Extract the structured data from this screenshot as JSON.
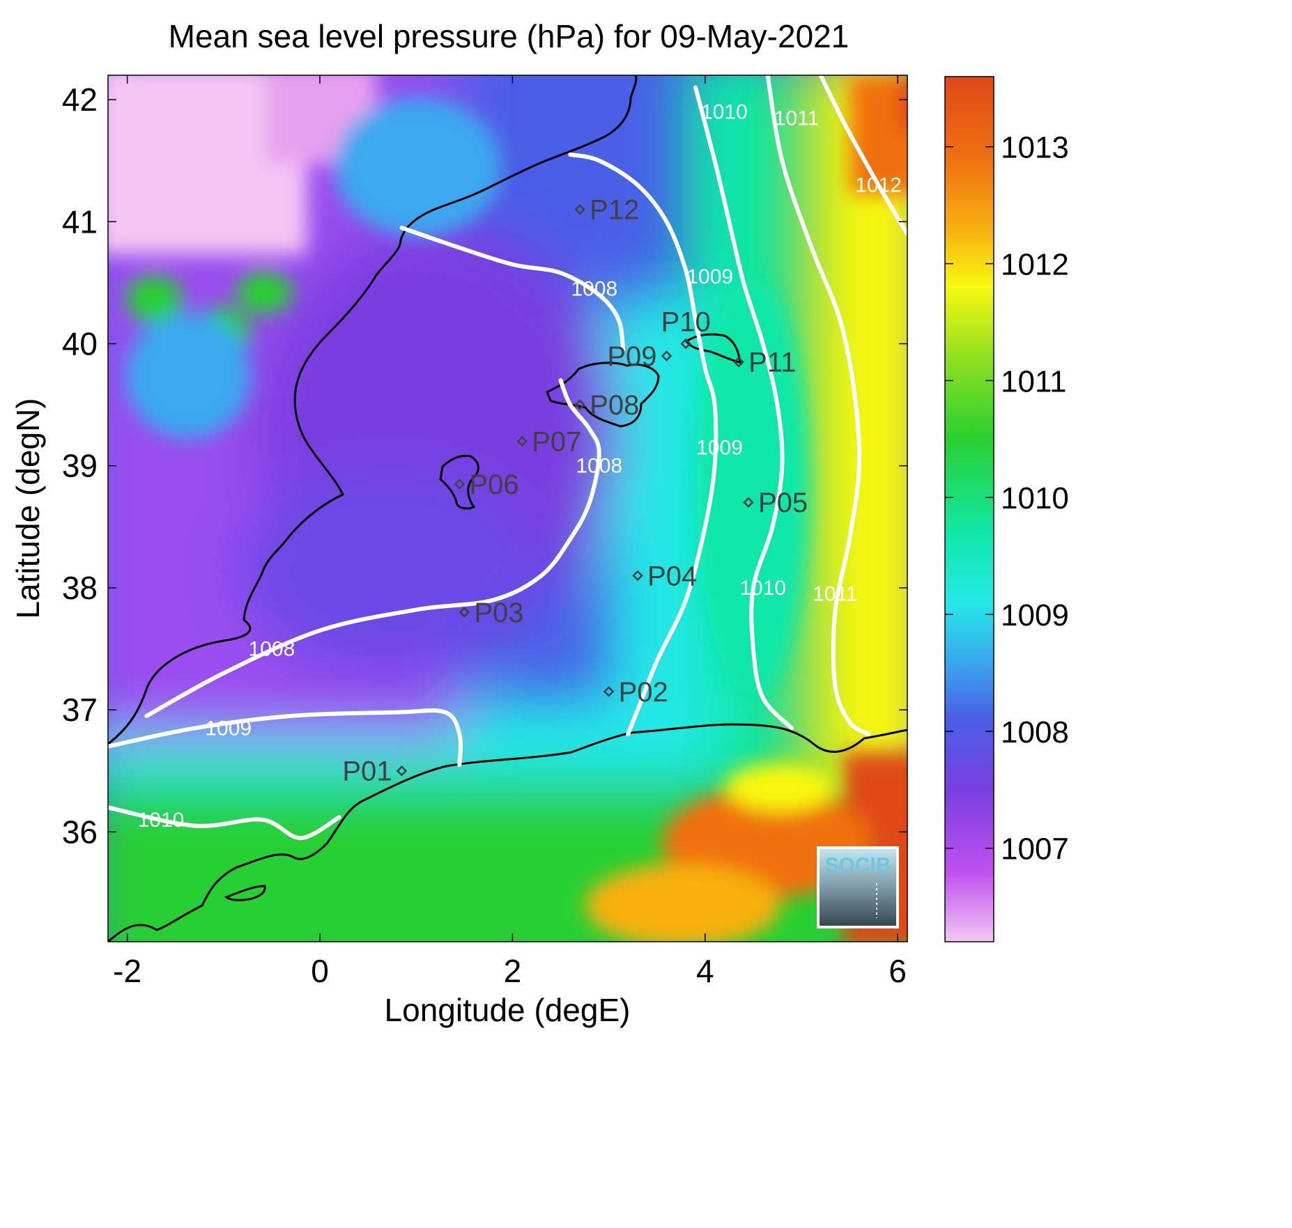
{
  "title": "Mean sea level pressure (hPa) for 09-May-2021",
  "xlabel": "Longitude (degE)",
  "ylabel": "Latitude (degN)",
  "logo_text": "SOCIB",
  "x_ticks": [
    {
      "value": -2,
      "label": "-2"
    },
    {
      "value": 0,
      "label": "0"
    },
    {
      "value": 2,
      "label": "2"
    },
    {
      "value": 4,
      "label": "4"
    },
    {
      "value": 6,
      "label": "6"
    }
  ],
  "y_ticks": [
    {
      "value": 36,
      "label": "36"
    },
    {
      "value": 37,
      "label": "37"
    },
    {
      "value": 38,
      "label": "38"
    },
    {
      "value": 39,
      "label": "39"
    },
    {
      "value": 40,
      "label": "40"
    },
    {
      "value": 41,
      "label": "41"
    },
    {
      "value": 42,
      "label": "42"
    }
  ],
  "colorbar": {
    "min": 1006.2,
    "max": 1013.6,
    "ticks": [
      {
        "value": 1007,
        "label": "1007"
      },
      {
        "value": 1008,
        "label": "1008"
      },
      {
        "value": 1009,
        "label": "1009"
      },
      {
        "value": 1010,
        "label": "1010"
      },
      {
        "value": 1011,
        "label": "1011"
      },
      {
        "value": 1012,
        "label": "1012"
      },
      {
        "value": 1013,
        "label": "1013"
      }
    ],
    "stops": [
      {
        "value": 1006.2,
        "color": "#f4c6f4"
      },
      {
        "value": 1006.8,
        "color": "#c050f0"
      },
      {
        "value": 1007.5,
        "color": "#7a3ee0"
      },
      {
        "value": 1008.1,
        "color": "#4a5ee8"
      },
      {
        "value": 1008.6,
        "color": "#3aa8f0"
      },
      {
        "value": 1009.1,
        "color": "#24e8e8"
      },
      {
        "value": 1009.7,
        "color": "#10e8a8"
      },
      {
        "value": 1010.5,
        "color": "#28d030"
      },
      {
        "value": 1011.2,
        "color": "#90e020"
      },
      {
        "value": 1011.8,
        "color": "#f8f810"
      },
      {
        "value": 1012.3,
        "color": "#f8b010"
      },
      {
        "value": 1012.9,
        "color": "#f07010"
      },
      {
        "value": 1013.6,
        "color": "#e04818"
      }
    ]
  },
  "chart_data": {
    "type": "heatmap",
    "title": "Mean sea level pressure (hPa) for 09-May-2021",
    "xlabel": "Longitude (degE)",
    "ylabel": "Latitude (degN)",
    "xlim": [
      -2.2,
      6.1
    ],
    "ylim": [
      35.1,
      42.2
    ],
    "zlim": [
      1006.2,
      1013.6
    ],
    "stations": [
      {
        "name": "P01",
        "lon": 0.85,
        "lat": 36.5,
        "label_side": "left"
      },
      {
        "name": "P02",
        "lon": 3.0,
        "lat": 37.15,
        "label_side": "right"
      },
      {
        "name": "P03",
        "lon": 1.5,
        "lat": 37.8,
        "label_side": "right"
      },
      {
        "name": "P04",
        "lon": 3.3,
        "lat": 38.1,
        "label_side": "right"
      },
      {
        "name": "P05",
        "lon": 4.45,
        "lat": 38.7,
        "label_side": "right"
      },
      {
        "name": "P06",
        "lon": 1.45,
        "lat": 38.85,
        "label_side": "right"
      },
      {
        "name": "P07",
        "lon": 2.1,
        "lat": 39.2,
        "label_side": "right"
      },
      {
        "name": "P08",
        "lon": 2.7,
        "lat": 39.5,
        "label_side": "right"
      },
      {
        "name": "P09",
        "lon": 3.6,
        "lat": 39.9,
        "label_side": "left"
      },
      {
        "name": "P10",
        "lon": 3.8,
        "lat": 40.0,
        "label_side": "above"
      },
      {
        "name": "P11",
        "lon": 4.35,
        "lat": 39.85,
        "label_side": "right"
      },
      {
        "name": "P12",
        "lon": 2.7,
        "lat": 41.1,
        "label_side": "right"
      }
    ],
    "contours": [
      {
        "level": 1008,
        "label": "1008",
        "paths": [
          [
            [
              -1.8,
              36.95
            ],
            [
              -1.0,
              37.3
            ],
            [
              0.0,
              37.65
            ],
            [
              1.0,
              37.82
            ],
            [
              1.8,
              37.9
            ],
            [
              2.3,
              38.1
            ],
            [
              2.6,
              38.4
            ],
            [
              2.8,
              38.7
            ],
            [
              2.9,
              39.1
            ],
            [
              2.8,
              39.3
            ],
            [
              2.6,
              39.5
            ],
            [
              2.5,
              39.7
            ]
          ],
          [
            [
              0.85,
              40.95
            ],
            [
              1.4,
              40.8
            ],
            [
              2.0,
              40.65
            ],
            [
              2.5,
              40.58
            ],
            [
              2.9,
              40.4
            ],
            [
              3.1,
              40.2
            ],
            [
              3.15,
              39.95
            ]
          ]
        ],
        "labels": [
          [
            -0.5,
            37.5
          ],
          [
            2.9,
            39.0
          ],
          [
            2.85,
            40.45
          ]
        ]
      },
      {
        "level": 1009,
        "label": "1009",
        "paths": [
          [
            [
              -2.2,
              36.7
            ],
            [
              -1.3,
              36.85
            ],
            [
              -0.3,
              36.95
            ],
            [
              0.8,
              36.98
            ],
            [
              1.3,
              36.98
            ],
            [
              1.45,
              36.8
            ],
            [
              1.45,
              36.55
            ]
          ],
          [
            [
              3.2,
              36.8
            ],
            [
              3.3,
              37.0
            ],
            [
              3.5,
              37.4
            ],
            [
              3.8,
              37.9
            ],
            [
              4.0,
              38.5
            ],
            [
              4.1,
              39.0
            ],
            [
              4.1,
              39.5
            ],
            [
              4.0,
              39.8
            ],
            [
              3.9,
              40.2
            ],
            [
              3.8,
              40.6
            ],
            [
              3.6,
              41.0
            ],
            [
              3.3,
              41.3
            ],
            [
              2.9,
              41.5
            ],
            [
              2.6,
              41.55
            ]
          ]
        ],
        "labels": [
          [
            -0.95,
            36.85
          ],
          [
            4.15,
            39.15
          ],
          [
            4.05,
            40.55
          ]
        ]
      },
      {
        "level": 1010,
        "label": "1010",
        "paths": [
          [
            [
              -2.2,
              36.2
            ],
            [
              -1.3,
              36.05
            ],
            [
              -0.6,
              36.1
            ],
            [
              -0.2,
              35.95
            ],
            [
              0.2,
              36.12
            ]
          ],
          [
            [
              4.9,
              36.85
            ],
            [
              4.6,
              37.1
            ],
            [
              4.5,
              37.5
            ],
            [
              4.5,
              38.0
            ],
            [
              4.7,
              38.5
            ],
            [
              4.8,
              39.0
            ],
            [
              4.75,
              39.5
            ],
            [
              4.6,
              40.0
            ],
            [
              4.4,
              40.5
            ],
            [
              4.25,
              41.0
            ],
            [
              4.1,
              41.5
            ],
            [
              3.9,
              42.1
            ]
          ]
        ],
        "labels": [
          [
            -1.65,
            36.1
          ],
          [
            4.6,
            38.0
          ],
          [
            4.2,
            41.9
          ]
        ]
      },
      {
        "level": 1011,
        "label": "1011",
        "paths": [
          [
            [
              5.7,
              36.8
            ],
            [
              5.5,
              36.9
            ],
            [
              5.35,
              37.2
            ],
            [
              5.35,
              37.8
            ],
            [
              5.5,
              38.4
            ],
            [
              5.6,
              39.0
            ],
            [
              5.55,
              39.6
            ],
            [
              5.4,
              40.2
            ],
            [
              5.1,
              40.8
            ],
            [
              4.8,
              41.5
            ],
            [
              4.65,
              42.2
            ]
          ]
        ],
        "labels": [
          [
            5.35,
            37.95
          ],
          [
            4.95,
            41.85
          ]
        ]
      },
      {
        "level": 1012,
        "label": "1012",
        "paths": [
          [
            [
              6.1,
              40.9
            ],
            [
              5.8,
              41.3
            ],
            [
              5.45,
              41.8
            ],
            [
              5.2,
              42.2
            ]
          ]
        ],
        "labels": [
          [
            5.8,
            41.3
          ]
        ]
      }
    ]
  }
}
